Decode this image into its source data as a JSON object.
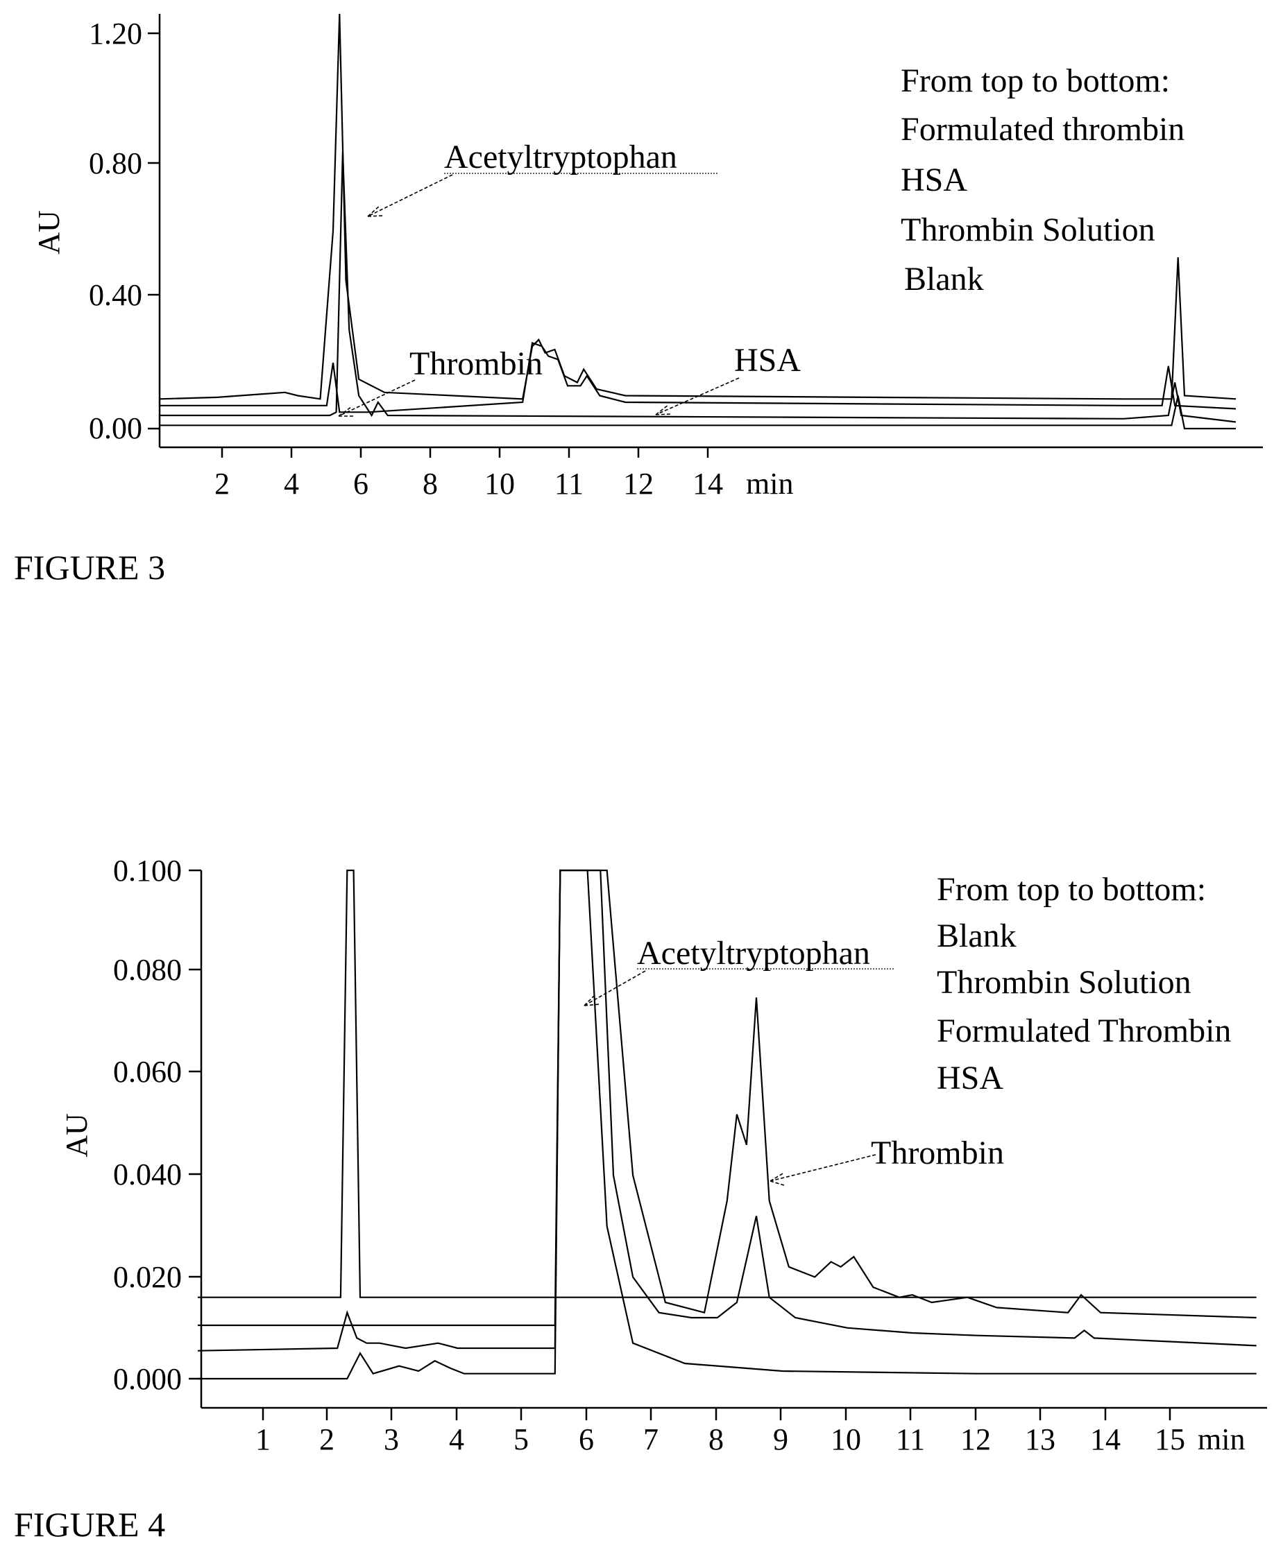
{
  "figures": [
    {
      "caption": "FIGURE 3",
      "ylabel": "AU",
      "xunit": "min",
      "ytick_labels": [
        "0.00",
        "0.40",
        "0.80",
        "1.20"
      ],
      "xtick_labels": [
        "2",
        "4",
        "6",
        "8",
        "10",
        "11",
        "12",
        "14"
      ],
      "annotations": [
        "Acetyltryptophan",
        "Thrombin",
        "HSA"
      ],
      "legend": [
        "From top to bottom:",
        "Formulated thrombin",
        "HSA",
        "Thrombin Solution",
        "Blank"
      ]
    },
    {
      "caption": "FIGURE 4",
      "ylabel": "AU",
      "xunit": "min",
      "ytick_labels": [
        "0.000",
        "0.020",
        "0.040",
        "0.060",
        "0.080",
        "0.100"
      ],
      "xtick_labels": [
        "1",
        "2",
        "3",
        "4",
        "5",
        "6",
        "7",
        "8",
        "9",
        "10",
        "11",
        "12",
        "13",
        "14",
        "15"
      ],
      "annotations": [
        "Acetyltryptophan",
        "Thrombin"
      ],
      "legend": [
        "From top to bottom:",
        "Blank",
        "Thrombin Solution",
        "Formulated Thrombin",
        "HSA"
      ]
    }
  ],
  "chart_data": [
    {
      "type": "line",
      "title": "",
      "xlabel": "min",
      "ylabel": "AU",
      "ylim": [
        0,
        1.2
      ],
      "yticks": [
        0.0,
        0.4,
        0.8,
        1.2
      ],
      "xtick_labels": [
        "2",
        "4",
        "6",
        "8",
        "10",
        "11",
        "12",
        "14"
      ],
      "series": [
        {
          "name": "Formulated thrombin",
          "points": [
            [
              0,
              0.09
            ],
            [
              1.8,
              0.095
            ],
            [
              3.9,
              0.11
            ],
            [
              4.3,
              0.1
            ],
            [
              5.0,
              0.09
            ],
            [
              5.4,
              0.6
            ],
            [
              5.6,
              1.27
            ],
            [
              5.8,
              0.45
            ],
            [
              6.2,
              0.15
            ],
            [
              7.0,
              0.11
            ],
            [
              11.3,
              0.09
            ],
            [
              11.6,
              0.25
            ],
            [
              11.8,
              0.27
            ],
            [
              12.0,
              0.23
            ],
            [
              12.3,
              0.24
            ],
            [
              12.6,
              0.16
            ],
            [
              13.0,
              0.14
            ],
            [
              13.2,
              0.18
            ],
            [
              13.6,
              0.12
            ],
            [
              14.5,
              0.1
            ],
            [
              30.0,
              0.09
            ],
            [
              31.5,
              0.09
            ],
            [
              31.7,
              0.52
            ],
            [
              31.9,
              0.1
            ],
            [
              33.5,
              0.09
            ]
          ]
        },
        {
          "name": "HSA",
          "points": [
            [
              0,
              0.07
            ],
            [
              4.5,
              0.07
            ],
            [
              5.2,
              0.07
            ],
            [
              5.4,
              0.2
            ],
            [
              5.6,
              0.05
            ],
            [
              6.5,
              0.05
            ],
            [
              11.3,
              0.08
            ],
            [
              11.6,
              0.26
            ],
            [
              11.9,
              0.25
            ],
            [
              12.1,
              0.22
            ],
            [
              12.4,
              0.21
            ],
            [
              12.7,
              0.13
            ],
            [
              13.1,
              0.13
            ],
            [
              13.3,
              0.16
            ],
            [
              13.7,
              0.1
            ],
            [
              14.5,
              0.08
            ],
            [
              30.0,
              0.07
            ],
            [
              31.2,
              0.07
            ],
            [
              31.4,
              0.19
            ],
            [
              31.6,
              0.07
            ],
            [
              33.5,
              0.06
            ]
          ]
        },
        {
          "name": "Thrombin Solution",
          "points": [
            [
              0,
              0.04
            ],
            [
              4.8,
              0.04
            ],
            [
              5.3,
              0.04
            ],
            [
              5.5,
              0.05
            ],
            [
              5.7,
              0.84
            ],
            [
              5.9,
              0.3
            ],
            [
              6.2,
              0.1
            ],
            [
              6.6,
              0.04
            ],
            [
              6.8,
              0.08
            ],
            [
              7.1,
              0.04
            ],
            [
              30.0,
              0.03
            ],
            [
              31.4,
              0.04
            ],
            [
              31.6,
              0.14
            ],
            [
              31.8,
              0.04
            ],
            [
              33.5,
              0.02
            ]
          ]
        },
        {
          "name": "Blank",
          "points": [
            [
              0,
              0.01
            ],
            [
              30.0,
              0.01
            ],
            [
              31.5,
              0.01
            ],
            [
              31.7,
              0.1
            ],
            [
              31.9,
              0.0
            ],
            [
              33.5,
              0.0
            ]
          ]
        }
      ]
    },
    {
      "type": "line",
      "title": "",
      "xlabel": "min",
      "ylabel": "AU",
      "ylim": [
        0,
        0.1
      ],
      "yticks": [
        0.0,
        0.02,
        0.04,
        0.06,
        0.08,
        0.1
      ],
      "xtick_labels": [
        "1",
        "2",
        "3",
        "4",
        "5",
        "6",
        "7",
        "8",
        "9",
        "10",
        "11",
        "12",
        "13",
        "14",
        "15"
      ],
      "series": [
        {
          "name": "Blank",
          "points": [
            [
              0,
              0.016
            ],
            [
              2.2,
              0.016
            ],
            [
              2.3,
              0.1
            ],
            [
              2.4,
              0.1
            ],
            [
              2.5,
              0.016
            ],
            [
              16.3,
              0.016
            ]
          ]
        },
        {
          "name": "Thrombin Solution",
          "points": [
            [
              0,
              0.0105
            ],
            [
              5.5,
              0.0105
            ],
            [
              5.58,
              0.1
            ],
            [
              6.2,
              0.1
            ],
            [
              6.4,
              0.04
            ],
            [
              6.7,
              0.02
            ],
            [
              7.1,
              0.013
            ],
            [
              7.6,
              0.012
            ],
            [
              8.0,
              0.012
            ],
            [
              8.3,
              0.015
            ],
            [
              8.6,
              0.032
            ],
            [
              8.8,
              0.016
            ],
            [
              9.2,
              0.012
            ],
            [
              10.0,
              0.01
            ],
            [
              11.0,
              0.009
            ],
            [
              12.0,
              0.0085
            ],
            [
              13.5,
              0.008
            ],
            [
              13.65,
              0.0095
            ],
            [
              13.8,
              0.008
            ],
            [
              16.3,
              0.0065
            ]
          ]
        },
        {
          "name": "Formulated Thrombin",
          "points": [
            [
              0,
              0.0055
            ],
            [
              2.15,
              0.006
            ],
            [
              2.3,
              0.013
            ],
            [
              2.45,
              0.008
            ],
            [
              2.6,
              0.007
            ],
            [
              2.8,
              0.007
            ],
            [
              3.2,
              0.006
            ],
            [
              3.7,
              0.007
            ],
            [
              4.0,
              0.006
            ],
            [
              5.5,
              0.006
            ],
            [
              5.58,
              0.1
            ],
            [
              6.3,
              0.1
            ],
            [
              6.7,
              0.04
            ],
            [
              7.2,
              0.015
            ],
            [
              7.8,
              0.013
            ],
            [
              8.15,
              0.035
            ],
            [
              8.3,
              0.052
            ],
            [
              8.45,
              0.046
            ],
            [
              8.6,
              0.075
            ],
            [
              8.8,
              0.035
            ],
            [
              9.1,
              0.022
            ],
            [
              9.5,
              0.02
            ],
            [
              9.75,
              0.023
            ],
            [
              9.9,
              0.022
            ],
            [
              10.1,
              0.024
            ],
            [
              10.4,
              0.018
            ],
            [
              10.8,
              0.016
            ],
            [
              11.0,
              0.0165
            ],
            [
              11.3,
              0.015
            ],
            [
              11.85,
              0.016
            ],
            [
              12.3,
              0.014
            ],
            [
              13.4,
              0.013
            ],
            [
              13.6,
              0.0165
            ],
            [
              13.9,
              0.013
            ],
            [
              16.3,
              0.012
            ]
          ]
        },
        {
          "name": "HSA",
          "points": [
            [
              0,
              0.0
            ],
            [
              2.3,
              0.0
            ],
            [
              2.5,
              0.005
            ],
            [
              2.7,
              0.001
            ],
            [
              3.1,
              0.0025
            ],
            [
              3.4,
              0.0015
            ],
            [
              3.65,
              0.0035
            ],
            [
              3.9,
              0.002
            ],
            [
              4.1,
              0.001
            ],
            [
              5.5,
              0.001
            ],
            [
              5.58,
              0.1
            ],
            [
              6.0,
              0.1
            ],
            [
              6.3,
              0.03
            ],
            [
              6.7,
              0.007
            ],
            [
              7.5,
              0.003
            ],
            [
              9.0,
              0.0015
            ],
            [
              12.0,
              0.001
            ],
            [
              16.3,
              0.001
            ]
          ]
        }
      ]
    }
  ]
}
